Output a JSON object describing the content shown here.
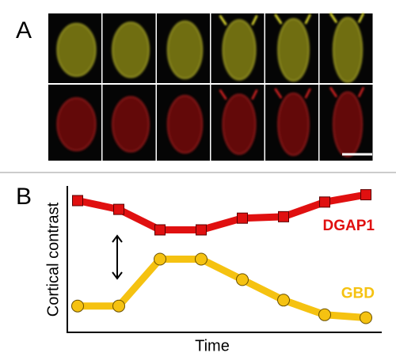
{
  "panel_a": {
    "label": "A"
  },
  "chart_data": {
    "type": "line",
    "panel_label": "B",
    "y_label": "Cortical contrast",
    "x_label": "Time",
    "categories": [
      null,
      null,
      null,
      null,
      null,
      null,
      null,
      null
    ],
    "ylim": [
      0,
      10
    ],
    "series": [
      {
        "name": "DGAP1",
        "color": "#e01010",
        "marker": "square",
        "values": [
          9.0,
          8.4,
          7.0,
          7.0,
          7.8,
          7.9,
          8.9,
          9.4
        ]
      },
      {
        "name": "GBD",
        "color": "#f5c211",
        "marker": "circle",
        "values": [
          1.8,
          1.8,
          5.0,
          5.0,
          3.6,
          2.2,
          1.2,
          1.0
        ]
      }
    ]
  }
}
